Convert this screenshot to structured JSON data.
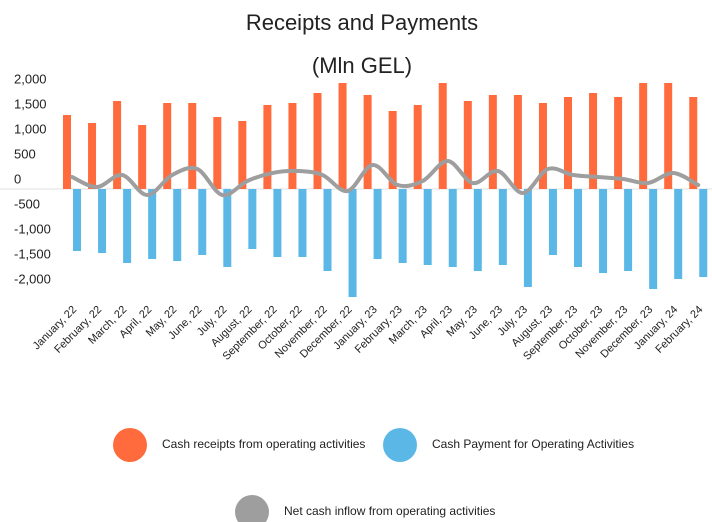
{
  "chart_data": {
    "type": "bar",
    "title": [
      "Receipts and Payments",
      "(Mln GEL)"
    ],
    "categories": [
      "January, 22",
      "February, 22",
      "March, 22",
      "April, 22",
      "May, 22",
      "June, 22",
      "July, 22",
      "August, 22",
      "September, 22",
      "October, 22",
      "November, 22",
      "December, 22",
      "January, 23",
      "February, 23",
      "March, 23",
      "April, 23",
      "May, 23",
      "June, 23",
      "July, 23",
      "August, 23",
      "September, 23",
      "October, 23",
      "November, 23",
      "December, 23",
      "January, 24",
      "February, 24"
    ],
    "series": [
      {
        "name": "Cash receipts from operating activities",
        "color": "#ff6b3d",
        "kind": "bar",
        "values": [
          1480,
          1320,
          1760,
          1280,
          1720,
          1720,
          1440,
          1360,
          1680,
          1720,
          1920,
          2120,
          1880,
          1560,
          1680,
          2120,
          1760,
          1880,
          1880,
          1720,
          1840,
          1920,
          1840,
          2120,
          2120,
          1840
        ]
      },
      {
        "name": "Cash Payment for Operating Activities",
        "color": "#5bb8e6",
        "kind": "bar",
        "values": [
          -1240,
          -1280,
          -1480,
          -1400,
          -1440,
          -1320,
          -1560,
          -1200,
          -1360,
          -1360,
          -1640,
          -2160,
          -1400,
          -1480,
          -1520,
          -1560,
          -1640,
          -1520,
          -1960,
          -1320,
          -1560,
          -1680,
          -1640,
          -2000,
          -1800,
          -1760
        ]
      },
      {
        "name": "Net cash inflow from operating activities",
        "color": "#9e9e9e",
        "kind": "line",
        "values": [
          240,
          40,
          280,
          -120,
          280,
          400,
          -120,
          160,
          320,
          360,
          280,
          -40,
          480,
          80,
          160,
          560,
          120,
          360,
          -80,
          400,
          280,
          240,
          200,
          120,
          320,
          80
        ]
      }
    ],
    "ylim": [
      -2500,
      2500
    ],
    "yticks": [
      {
        "value": 2000,
        "label": "2,000"
      },
      {
        "value": 1500,
        "label": "1,500"
      },
      {
        "value": 1000,
        "label": "1,000"
      },
      500,
      0,
      {
        "value": -500,
        "label": "-500"
      },
      {
        "value": -1000,
        "label": "-1,000"
      },
      {
        "value": -1500,
        "label": "-1,500"
      },
      {
        "value": -2000,
        "label": "-2,000"
      }
    ],
    "grid": false
  }
}
